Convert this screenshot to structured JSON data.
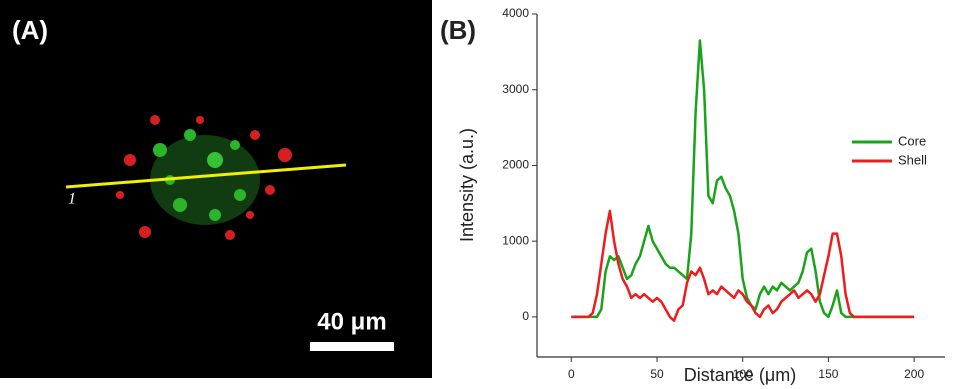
{
  "panel_a": {
    "label": "(A)",
    "line_label": "1",
    "scale_bar_label": "40 μm"
  },
  "chart_data": {
    "type": "line",
    "panel_label": "(B)",
    "x_label": "Distance (μm)",
    "y_label": "Intensity (a.u.)",
    "x": [
      0,
      2.5,
      5,
      7.5,
      10,
      12.5,
      15,
      17.5,
      20,
      22.5,
      25,
      27.5,
      30,
      32.5,
      35,
      37.5,
      40,
      42.5,
      45,
      47.5,
      50,
      52.5,
      55,
      57.5,
      60,
      62.5,
      65,
      67.5,
      70,
      72.5,
      75,
      77.5,
      80,
      82.5,
      85,
      87.5,
      90,
      92.5,
      95,
      97.5,
      100,
      102.5,
      105,
      107.5,
      110,
      112.5,
      115,
      117.5,
      120,
      122.5,
      125,
      127.5,
      130,
      132.5,
      135,
      137.5,
      140,
      142.5,
      145,
      147.5,
      150,
      152.5,
      155,
      157.5,
      160,
      162.5,
      165,
      167.5,
      170,
      172.5,
      175,
      177.5,
      180,
      182.5,
      185,
      187.5,
      190,
      192.5,
      195,
      197.5,
      200
    ],
    "series": [
      {
        "name": "Core",
        "color": "#1aa31a",
        "values": [
          0,
          0,
          0,
          0,
          0,
          0,
          0,
          100,
          600,
          800,
          750,
          800,
          650,
          500,
          550,
          700,
          800,
          1000,
          1200,
          1000,
          900,
          800,
          700,
          650,
          650,
          600,
          550,
          500,
          1100,
          2700,
          3650,
          3000,
          1600,
          1500,
          1800,
          1850,
          1700,
          1600,
          1400,
          1100,
          500,
          250,
          150,
          100,
          300,
          400,
          300,
          400,
          350,
          450,
          400,
          350,
          400,
          450,
          600,
          850,
          900,
          600,
          200,
          50,
          0,
          150,
          350,
          50,
          0,
          0,
          0,
          0,
          0,
          0,
          0,
          0,
          0,
          0,
          0,
          0,
          0,
          0,
          0,
          0,
          0
        ]
      },
      {
        "name": "Shell",
        "color": "#ee1c1c",
        "values": [
          0,
          0,
          0,
          0,
          0,
          50,
          300,
          700,
          1100,
          1400,
          1000,
          700,
          500,
          400,
          250,
          300,
          250,
          300,
          250,
          200,
          250,
          200,
          100,
          0,
          -50,
          100,
          150,
          450,
          600,
          550,
          650,
          500,
          300,
          350,
          300,
          400,
          350,
          300,
          250,
          350,
          300,
          200,
          150,
          50,
          0,
          100,
          150,
          50,
          100,
          200,
          250,
          300,
          350,
          250,
          300,
          350,
          300,
          200,
          300,
          550,
          800,
          1100,
          1100,
          800,
          300,
          50,
          0,
          0,
          0,
          0,
          0,
          0,
          0,
          0,
          0,
          0,
          0,
          0,
          0,
          0,
          0
        ]
      }
    ],
    "xlim": [
      -20,
      218
    ],
    "ylim": [
      -530,
      4000
    ],
    "xticks": [
      0,
      50,
      100,
      150,
      200
    ],
    "yticks": [
      0,
      1000,
      2000,
      3000,
      4000
    ],
    "legend": "upper right"
  }
}
